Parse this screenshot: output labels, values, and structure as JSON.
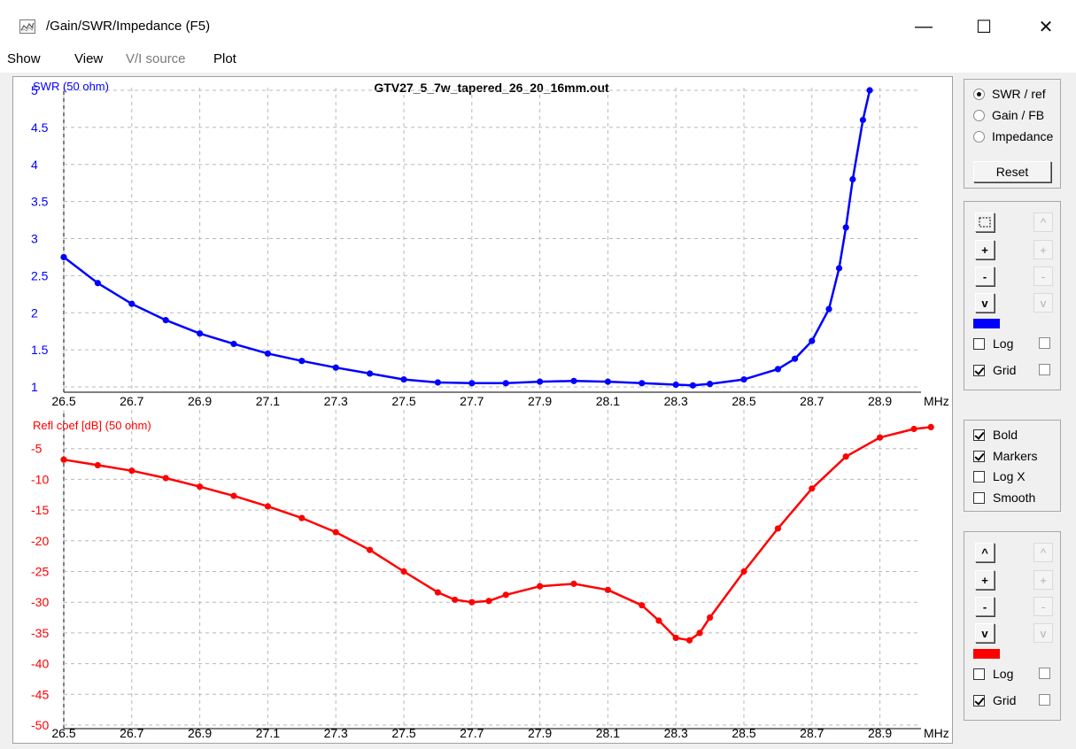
{
  "window": {
    "title": "/Gain/SWR/Impedance (F5)",
    "minimize": "—",
    "maximize": "☐",
    "close": "✕"
  },
  "menu": [
    "Show",
    "View",
    "V/I source",
    "Plot"
  ],
  "plot_title": "GTV27_5_7w_tapered_26_20_16mm.out",
  "panels": {
    "mode_radios": [
      {
        "label": "SWR / ref",
        "selected": true
      },
      {
        "label": "Gain / FB",
        "selected": false
      },
      {
        "label": "Impedance",
        "selected": false
      }
    ],
    "reset_label": "Reset",
    "top_controls": {
      "up": "^",
      "plus": "+",
      "minus": "-",
      "down": "v",
      "log_label": "Log",
      "grid_label": "Grid",
      "log_checked": false,
      "grid_checked": true,
      "color": "#0000ff"
    },
    "display_options": [
      {
        "label": "Bold",
        "checked": true
      },
      {
        "label": "Markers",
        "checked": true
      },
      {
        "label": "Log X",
        "checked": false
      },
      {
        "label": "Smooth",
        "checked": false
      }
    ],
    "bottom_controls": {
      "up": "^",
      "plus": "+",
      "minus": "-",
      "down": "v",
      "log_label": "Log",
      "grid_label": "Grid",
      "log_checked": false,
      "grid_checked": true,
      "color": "#ff0000"
    }
  },
  "chart_data": [
    {
      "type": "line",
      "ylabel": "SWR (50 ohm)",
      "xunit": "MHz",
      "color": "#0000ff",
      "xlim": [
        26.5,
        29.0
      ],
      "ylim": [
        1,
        5
      ],
      "xticks": [
        "26.5",
        "26.7",
        "26.9",
        "27.1",
        "27.3",
        "27.5",
        "27.7",
        "27.9",
        "28.1",
        "28.3",
        "28.5",
        "28.7",
        "28.9"
      ],
      "yticks": [
        "1",
        "1.5",
        "2",
        "2.5",
        "3",
        "3.5",
        "4",
        "4.5",
        "5"
      ],
      "grid": true,
      "markers": true,
      "x": [
        26.5,
        26.6,
        26.7,
        26.8,
        26.9,
        27.0,
        27.1,
        27.2,
        27.3,
        27.4,
        27.5,
        27.6,
        27.7,
        27.8,
        27.9,
        28.0,
        28.1,
        28.2,
        28.3,
        28.35,
        28.4,
        28.5,
        28.6,
        28.65,
        28.7,
        28.75,
        28.78,
        28.8,
        28.82,
        28.85,
        28.87
      ],
      "y": [
        2.75,
        2.4,
        2.12,
        1.9,
        1.72,
        1.58,
        1.45,
        1.35,
        1.26,
        1.18,
        1.1,
        1.06,
        1.05,
        1.05,
        1.07,
        1.08,
        1.07,
        1.05,
        1.03,
        1.02,
        1.04,
        1.1,
        1.24,
        1.38,
        1.62,
        2.05,
        2.6,
        3.15,
        3.8,
        4.6,
        5.0
      ]
    },
    {
      "type": "line",
      "ylabel": "Refl coef [dB] (50 ohm)",
      "xunit": "MHz",
      "color": "#ff0000",
      "xlim": [
        26.5,
        29.0
      ],
      "ylim": [
        -50,
        0
      ],
      "xticks": [
        "26.5",
        "26.7",
        "26.9",
        "27.1",
        "27.3",
        "27.5",
        "27.7",
        "27.9",
        "28.1",
        "28.3",
        "28.5",
        "28.7",
        "28.9"
      ],
      "yticks": [
        "-5",
        "-10",
        "-15",
        "-20",
        "-25",
        "-30",
        "-35",
        "-40",
        "-45",
        "-50"
      ],
      "grid": true,
      "markers": true,
      "x": [
        26.5,
        26.6,
        26.7,
        26.8,
        26.9,
        27.0,
        27.1,
        27.2,
        27.3,
        27.4,
        27.5,
        27.6,
        27.65,
        27.7,
        27.75,
        27.8,
        27.9,
        28.0,
        28.1,
        28.2,
        28.25,
        28.3,
        28.34,
        28.37,
        28.4,
        28.5,
        28.6,
        28.7,
        28.8,
        28.9,
        29.0,
        29.05
      ],
      "y": [
        -6.8,
        -7.7,
        -8.6,
        -9.8,
        -11.2,
        -12.7,
        -14.4,
        -16.3,
        -18.6,
        -21.5,
        -25.0,
        -28.4,
        -29.6,
        -30.0,
        -29.8,
        -28.8,
        -27.4,
        -27.0,
        -28.0,
        -30.5,
        -33.0,
        -35.8,
        -36.2,
        -35.0,
        -32.5,
        -25.0,
        -18.0,
        -11.5,
        -6.3,
        -3.2,
        -1.8,
        -1.5
      ]
    }
  ]
}
